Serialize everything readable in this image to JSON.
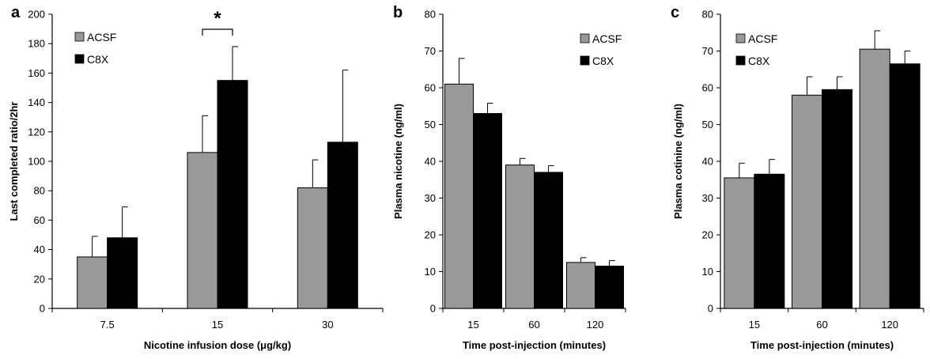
{
  "chart_data": [
    {
      "panel": "a",
      "type": "bar",
      "categories": [
        "7.5",
        "15",
        "30"
      ],
      "series": [
        {
          "name": "ACSF",
          "color": "#999999",
          "values": [
            35,
            106,
            82
          ],
          "errors": [
            14,
            25,
            19
          ]
        },
        {
          "name": "C8X",
          "color": "#000000",
          "values": [
            48,
            155,
            113
          ],
          "errors": [
            21,
            23,
            49
          ]
        }
      ],
      "xlabel": "Nicotine infusion dose (μg/kg)",
      "ylabel": "Last completed ratio/2hr",
      "ylim": [
        0,
        200
      ],
      "yticks": [
        0,
        20,
        40,
        60,
        80,
        100,
        120,
        140,
        160,
        180,
        200
      ],
      "legend": "top-left",
      "annotations": [
        {
          "text": "*",
          "category": "15",
          "type": "significance-bracket"
        }
      ],
      "grid": false
    },
    {
      "panel": "b",
      "type": "bar",
      "categories": [
        "15",
        "60",
        "120"
      ],
      "series": [
        {
          "name": "ACSF",
          "color": "#999999",
          "values": [
            61,
            39,
            12.5
          ],
          "errors": [
            7,
            1.8,
            1.3
          ]
        },
        {
          "name": "C8X",
          "color": "#000000",
          "values": [
            53,
            37,
            11.5
          ],
          "errors": [
            2.8,
            1.8,
            1.5
          ]
        }
      ],
      "xlabel": "Time post-injection (minutes)",
      "ylabel": "Plasma nicotine (ng/ml)",
      "ylim": [
        0,
        80
      ],
      "yticks": [
        0,
        10,
        20,
        30,
        40,
        50,
        60,
        70,
        80
      ],
      "legend": "top-right",
      "grid": false
    },
    {
      "panel": "c",
      "type": "bar",
      "categories": [
        "15",
        "60",
        "120"
      ],
      "series": [
        {
          "name": "ACSF",
          "color": "#999999",
          "values": [
            35.5,
            58,
            70.5
          ],
          "errors": [
            4,
            5,
            5
          ]
        },
        {
          "name": "C8X",
          "color": "#000000",
          "values": [
            36.5,
            59.5,
            66.5
          ],
          "errors": [
            4,
            3.5,
            3.5
          ]
        }
      ],
      "xlabel": "Time post-injection (minutes)",
      "ylabel": "Plasma cotinine (ng/ml)",
      "ylim": [
        0,
        80
      ],
      "yticks": [
        0,
        10,
        20,
        30,
        40,
        50,
        60,
        70,
        80
      ],
      "legend": "top-left",
      "grid": false
    }
  ]
}
